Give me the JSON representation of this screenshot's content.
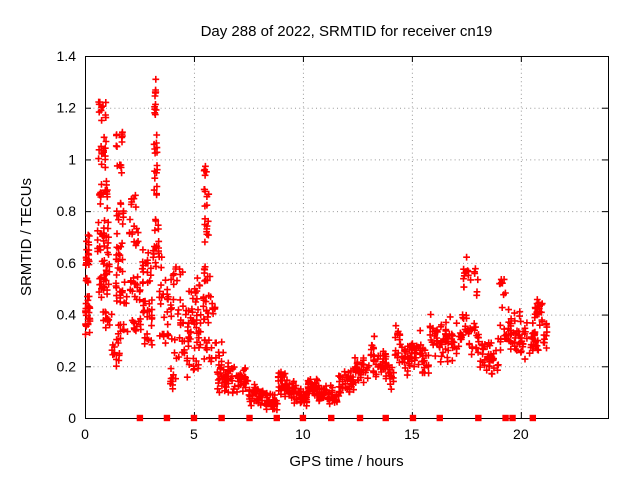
{
  "title": "Day 288 of 2022, SRMTID for receiver cn19",
  "chart_data": {
    "type": "scatter",
    "title": "Day 288 of 2022, SRMTID for receiver cn19",
    "xlabel": "GPS time / hours",
    "ylabel": "SRMTID / TECUs",
    "xlim": [
      0,
      24
    ],
    "ylim": [
      0,
      1.4
    ],
    "xticks": [
      0,
      5,
      10,
      15,
      20
    ],
    "ytick_labels": [
      "0",
      "0.2",
      "0.4",
      "0.6",
      "0.8",
      "1",
      "1.2",
      "1.4"
    ],
    "grid": "dotted at major ticks",
    "legend": "none",
    "marker": "plus",
    "marker_color": "#ff0000",
    "grid_color": "#999999",
    "axis_color": "#000000",
    "background_color": "#ffffff",
    "peak_point": {
      "t": 3.25,
      "value": 1.31
    },
    "data_end_time": 21.2,
    "clusters_t0_t1_vmin_vmax_n": [
      [
        0.0,
        0.22,
        0.55,
        0.73,
        20
      ],
      [
        0.0,
        0.25,
        0.3,
        0.5,
        26
      ],
      [
        0.02,
        0.2,
        0.5,
        0.56,
        5
      ],
      [
        0.6,
        1.0,
        1.13,
        1.25,
        11
      ],
      [
        0.6,
        1.0,
        0.95,
        1.13,
        13
      ],
      [
        0.6,
        1.05,
        0.8,
        0.95,
        16
      ],
      [
        0.55,
        1.1,
        0.62,
        0.8,
        26
      ],
      [
        0.6,
        1.15,
        0.44,
        0.62,
        28
      ],
      [
        0.8,
        1.25,
        0.32,
        0.44,
        12
      ],
      [
        1.2,
        1.6,
        0.17,
        0.32,
        13
      ],
      [
        1.4,
        1.75,
        1.02,
        1.13,
        9
      ],
      [
        1.45,
        1.8,
        0.92,
        1.02,
        6
      ],
      [
        1.4,
        1.8,
        0.72,
        0.86,
        10
      ],
      [
        1.4,
        1.85,
        0.55,
        0.72,
        15
      ],
      [
        1.4,
        1.95,
        0.38,
        0.55,
        17
      ],
      [
        1.5,
        2.0,
        0.28,
        0.38,
        9
      ],
      [
        2.0,
        2.45,
        0.78,
        0.88,
        7
      ],
      [
        2.0,
        2.5,
        0.6,
        0.78,
        12
      ],
      [
        2.05,
        2.55,
        0.42,
        0.6,
        16
      ],
      [
        2.1,
        2.6,
        0.3,
        0.42,
        11
      ],
      [
        2.6,
        3.05,
        0.5,
        0.66,
        18
      ],
      [
        2.65,
        3.1,
        0.34,
        0.5,
        16
      ],
      [
        2.7,
        3.1,
        0.24,
        0.34,
        7
      ],
      [
        3.15,
        3.3,
        1.22,
        1.31,
        6
      ],
      [
        3.15,
        3.3,
        1.12,
        1.22,
        6
      ],
      [
        3.15,
        3.32,
        1.0,
        1.12,
        7
      ],
      [
        3.15,
        3.35,
        0.82,
        1.0,
        9
      ],
      [
        3.18,
        3.4,
        0.7,
        0.82,
        5
      ],
      [
        3.1,
        3.55,
        0.57,
        0.7,
        16
      ],
      [
        3.35,
        3.85,
        0.38,
        0.57,
        14
      ],
      [
        3.4,
        3.85,
        0.26,
        0.38,
        9
      ],
      [
        3.88,
        4.2,
        0.06,
        0.2,
        11
      ],
      [
        3.9,
        4.5,
        0.5,
        0.63,
        10
      ],
      [
        3.9,
        4.55,
        0.33,
        0.5,
        14
      ],
      [
        3.95,
        4.6,
        0.16,
        0.33,
        12
      ],
      [
        4.6,
        5.3,
        0.43,
        0.56,
        11
      ],
      [
        4.6,
        5.35,
        0.25,
        0.43,
        34
      ],
      [
        4.65,
        5.35,
        0.15,
        0.25,
        11
      ],
      [
        5.45,
        5.65,
        0.92,
        0.99,
        5
      ],
      [
        5.45,
        5.7,
        0.8,
        0.92,
        7
      ],
      [
        5.45,
        5.72,
        0.62,
        0.8,
        9
      ],
      [
        5.45,
        5.78,
        0.5,
        0.62,
        9
      ],
      [
        5.4,
        6.0,
        0.34,
        0.5,
        20
      ],
      [
        5.45,
        6.05,
        0.2,
        0.34,
        14
      ],
      [
        6.05,
        7.0,
        0.09,
        0.22,
        45
      ],
      [
        6.1,
        6.6,
        0.2,
        0.3,
        7
      ],
      [
        7.0,
        7.5,
        0.08,
        0.2,
        30
      ],
      [
        7.5,
        8.2,
        0.04,
        0.14,
        40
      ],
      [
        8.2,
        8.85,
        0.02,
        0.1,
        38
      ],
      [
        8.85,
        9.3,
        0.07,
        0.19,
        30
      ],
      [
        9.3,
        9.75,
        0.05,
        0.15,
        26
      ],
      [
        9.75,
        10.2,
        0.04,
        0.12,
        26
      ],
      [
        10.2,
        10.7,
        0.07,
        0.16,
        30
      ],
      [
        10.7,
        11.6,
        0.05,
        0.13,
        44
      ],
      [
        11.6,
        12.35,
        0.08,
        0.2,
        40
      ],
      [
        12.35,
        13.0,
        0.12,
        0.26,
        34
      ],
      [
        13.0,
        13.3,
        0.15,
        0.36,
        16
      ],
      [
        13.3,
        13.95,
        0.12,
        0.28,
        32
      ],
      [
        13.95,
        14.2,
        0.1,
        0.22,
        12
      ],
      [
        14.2,
        14.5,
        0.18,
        0.39,
        16
      ],
      [
        14.5,
        14.95,
        0.15,
        0.3,
        22
      ],
      [
        14.95,
        15.45,
        0.18,
        0.34,
        24
      ],
      [
        15.45,
        15.8,
        0.13,
        0.28,
        17
      ],
      [
        15.8,
        16.2,
        0.2,
        0.42,
        20
      ],
      [
        16.2,
        17.3,
        0.2,
        0.4,
        55
      ],
      [
        17.35,
        17.62,
        0.43,
        0.65,
        11
      ],
      [
        17.3,
        17.65,
        0.3,
        0.43,
        13
      ],
      [
        17.65,
        18.05,
        0.44,
        0.62,
        7
      ],
      [
        17.6,
        18.1,
        0.22,
        0.4,
        20
      ],
      [
        18.1,
        19.0,
        0.14,
        0.32,
        40
      ],
      [
        19.0,
        19.35,
        0.4,
        0.61,
        9
      ],
      [
        19.0,
        19.4,
        0.25,
        0.4,
        12
      ],
      [
        19.4,
        20.35,
        0.2,
        0.44,
        50
      ],
      [
        20.35,
        20.6,
        0.22,
        0.38,
        12
      ],
      [
        20.6,
        21.0,
        0.34,
        0.48,
        22
      ],
      [
        20.6,
        21.05,
        0.25,
        0.34,
        12
      ],
      [
        21.0,
        21.22,
        0.23,
        0.38,
        10
      ]
    ],
    "zero_flag_times": [
      2.52,
      3.76,
      5.0,
      6.27,
      7.55,
      8.8,
      10.0,
      11.3,
      12.62,
      13.8,
      15.05,
      16.28,
      18.05,
      19.3,
      19.62,
      20.55
    ]
  }
}
